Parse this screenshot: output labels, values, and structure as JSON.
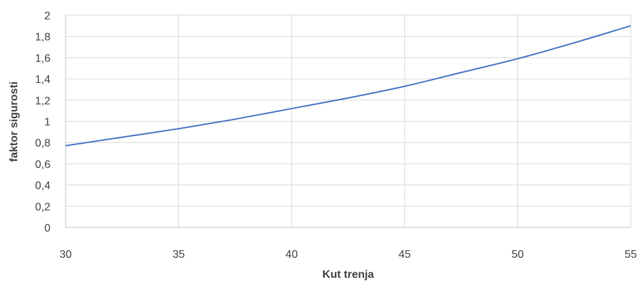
{
  "chart_data": {
    "type": "line",
    "title": "",
    "xlabel": "Kut trenja",
    "ylabel": "faktor sigurosti",
    "xlim": [
      30,
      55
    ],
    "ylim": [
      0,
      2
    ],
    "x_ticks": [
      30,
      35,
      40,
      45,
      50,
      55
    ],
    "x_tick_labels": [
      "30",
      "35",
      "40",
      "45",
      "50",
      "55"
    ],
    "y_ticks": [
      0,
      0.2,
      0.4,
      0.6,
      0.8,
      1,
      1.2,
      1.4,
      1.6,
      1.8,
      2
    ],
    "y_tick_labels": [
      "0",
      "0,2",
      "0,4",
      "0,6",
      "0,8",
      "1",
      "1,2",
      "1,4",
      "1,6",
      "1,8",
      "2"
    ],
    "grid": true,
    "legend": "none",
    "series": [
      {
        "color": "#4472c4",
        "x": [
          30,
          32.5,
          35,
          37.5,
          40,
          42.5,
          45,
          47.5,
          50,
          52.5,
          55
        ],
        "y": [
          0.77,
          0.85,
          0.93,
          1.02,
          1.12,
          1.22,
          1.33,
          1.46,
          1.59,
          1.74,
          1.9
        ]
      }
    ]
  }
}
